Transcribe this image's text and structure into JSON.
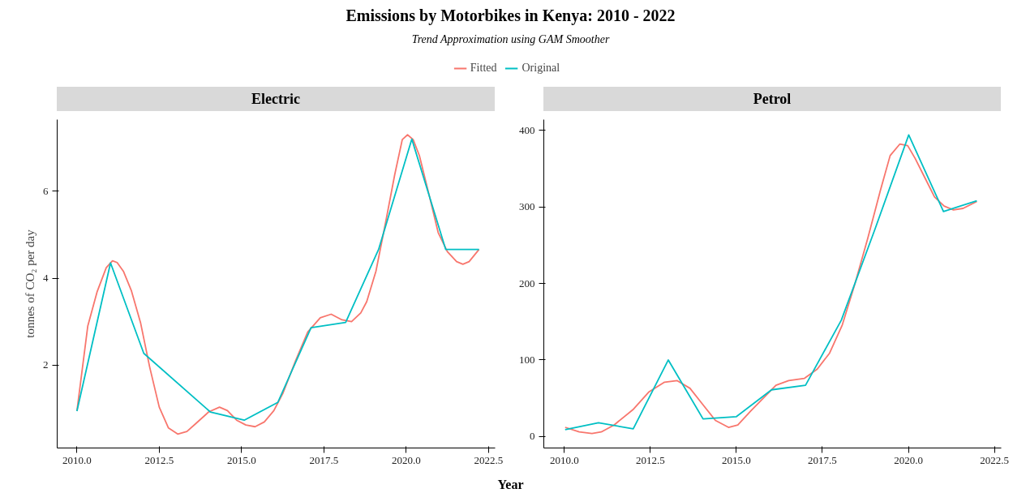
{
  "chart_data": [
    {
      "type": "line",
      "title": "Emissions by Motorbikes in Kenya: 2010 - 2022",
      "subtitle": "Trend Approximation using GAM Smoother",
      "ylabel": "tonnes of CO₂ per day",
      "annotations": [
        "Electric"
      ],
      "legend": "top",
      "grid": false,
      "marker": "none",
      "line_style": "solid",
      "xlim": [
        2009.4,
        2022.7
      ],
      "xticks": [
        {
          "value": 2010,
          "label": "2010.0"
        },
        {
          "value": 2012.5,
          "label": "2012.5"
        },
        {
          "value": 2015,
          "label": "2015.0"
        },
        {
          "value": 2017.5,
          "label": "2017.5"
        },
        {
          "value": 2020,
          "label": "2020.0"
        },
        {
          "value": 2022.5,
          "label": "2022.5"
        }
      ],
      "ylim": [
        0.09,
        7.65
      ],
      "yticks": [
        2,
        4,
        6
      ],
      "series": [
        {
          "name": "Fitted",
          "color": "#f8766d",
          "x": [
            2010.0,
            2010.33,
            2010.61,
            2010.89,
            2011.08,
            2011.22,
            2011.41,
            2011.65,
            2011.93,
            2012.21,
            2012.5,
            2012.78,
            2013.06,
            2013.34,
            2013.62,
            2014.0,
            2014.33,
            2014.57,
            2014.85,
            2015.13,
            2015.41,
            2015.69,
            2015.98,
            2016.26,
            2016.64,
            2017.01,
            2017.39,
            2017.72,
            2018.05,
            2018.34,
            2018.62,
            2018.8,
            2019.08,
            2019.37,
            2019.65,
            2019.88,
            2020.04,
            2020.21,
            2020.4,
            2020.69,
            2020.97,
            2021.25,
            2021.53,
            2021.72,
            2021.91,
            2022.21
          ],
          "values": [
            0.94,
            2.9,
            3.68,
            4.24,
            4.4,
            4.36,
            4.16,
            3.72,
            2.98,
            1.95,
            1.03,
            0.55,
            0.41,
            0.47,
            0.66,
            0.92,
            1.03,
            0.95,
            0.73,
            0.62,
            0.58,
            0.69,
            0.95,
            1.36,
            2.1,
            2.76,
            3.09,
            3.17,
            3.04,
            3.0,
            3.2,
            3.46,
            4.16,
            5.27,
            6.38,
            7.19,
            7.3,
            7.19,
            6.82,
            5.93,
            5.05,
            4.61,
            4.38,
            4.32,
            4.38,
            4.66
          ]
        },
        {
          "name": "Original",
          "color": "#00bfc4",
          "x": [
            2010.0,
            2011.02,
            2012.03,
            2014.05,
            2015.08,
            2016.1,
            2017.11,
            2018.16,
            2019.16,
            2020.17,
            2021.2,
            2022.21
          ],
          "values": [
            0.94,
            4.35,
            2.27,
            0.92,
            0.73,
            1.14,
            2.86,
            2.98,
            4.66,
            7.2,
            4.66,
            4.66
          ]
        }
      ]
    },
    {
      "type": "line",
      "annotations": [
        "Petrol"
      ],
      "xlabel": "Year",
      "grid": false,
      "marker": "none",
      "line_style": "solid",
      "xlim": [
        2009.4,
        2022.7
      ],
      "xticks": [
        {
          "value": 2010,
          "label": "2010.0"
        },
        {
          "value": 2012.5,
          "label": "2012.5"
        },
        {
          "value": 2015,
          "label": "2015.0"
        },
        {
          "value": 2017.5,
          "label": "2017.5"
        },
        {
          "value": 2020,
          "label": "2020.0"
        },
        {
          "value": 2022.5,
          "label": "2022.5"
        }
      ],
      "ylim": [
        -15,
        414
      ],
      "yticks": [
        0,
        100,
        200,
        300,
        400
      ],
      "series": [
        {
          "color": "#f8766d",
          "x": [
            2010.02,
            2010.43,
            2010.8,
            2011.07,
            2011.44,
            2011.99,
            2012.45,
            2012.91,
            2013.28,
            2013.65,
            2014.02,
            2014.39,
            2014.77,
            2015.04,
            2015.41,
            2015.78,
            2016.15,
            2016.52,
            2016.98,
            2017.35,
            2017.71,
            2018.08,
            2018.45,
            2018.82,
            2019.19,
            2019.47,
            2019.75,
            2019.98,
            2020.2,
            2020.48,
            2020.76,
            2021.04,
            2021.31,
            2021.59,
            2021.99
          ],
          "values": [
            12,
            6,
            4,
            6,
            15,
            35,
            58,
            71,
            73,
            63,
            42,
            21,
            12,
            15,
            33,
            50,
            67,
            73,
            76,
            88,
            109,
            146,
            200,
            259,
            322,
            367,
            382,
            380,
            363,
            338,
            313,
            301,
            296,
            298,
            307
          ]
        },
        {
          "color": "#00bfc4",
          "x": [
            2010.02,
            2010.99,
            2012.0,
            2013.02,
            2014.03,
            2015.0,
            2016.02,
            2017.01,
            2018.05,
            2019.03,
            2020.01,
            2021.02,
            2021.99
          ],
          "values": [
            9,
            18,
            10,
            100,
            23,
            26,
            61,
            67,
            152,
            271,
            394,
            294,
            308
          ]
        }
      ]
    }
  ]
}
